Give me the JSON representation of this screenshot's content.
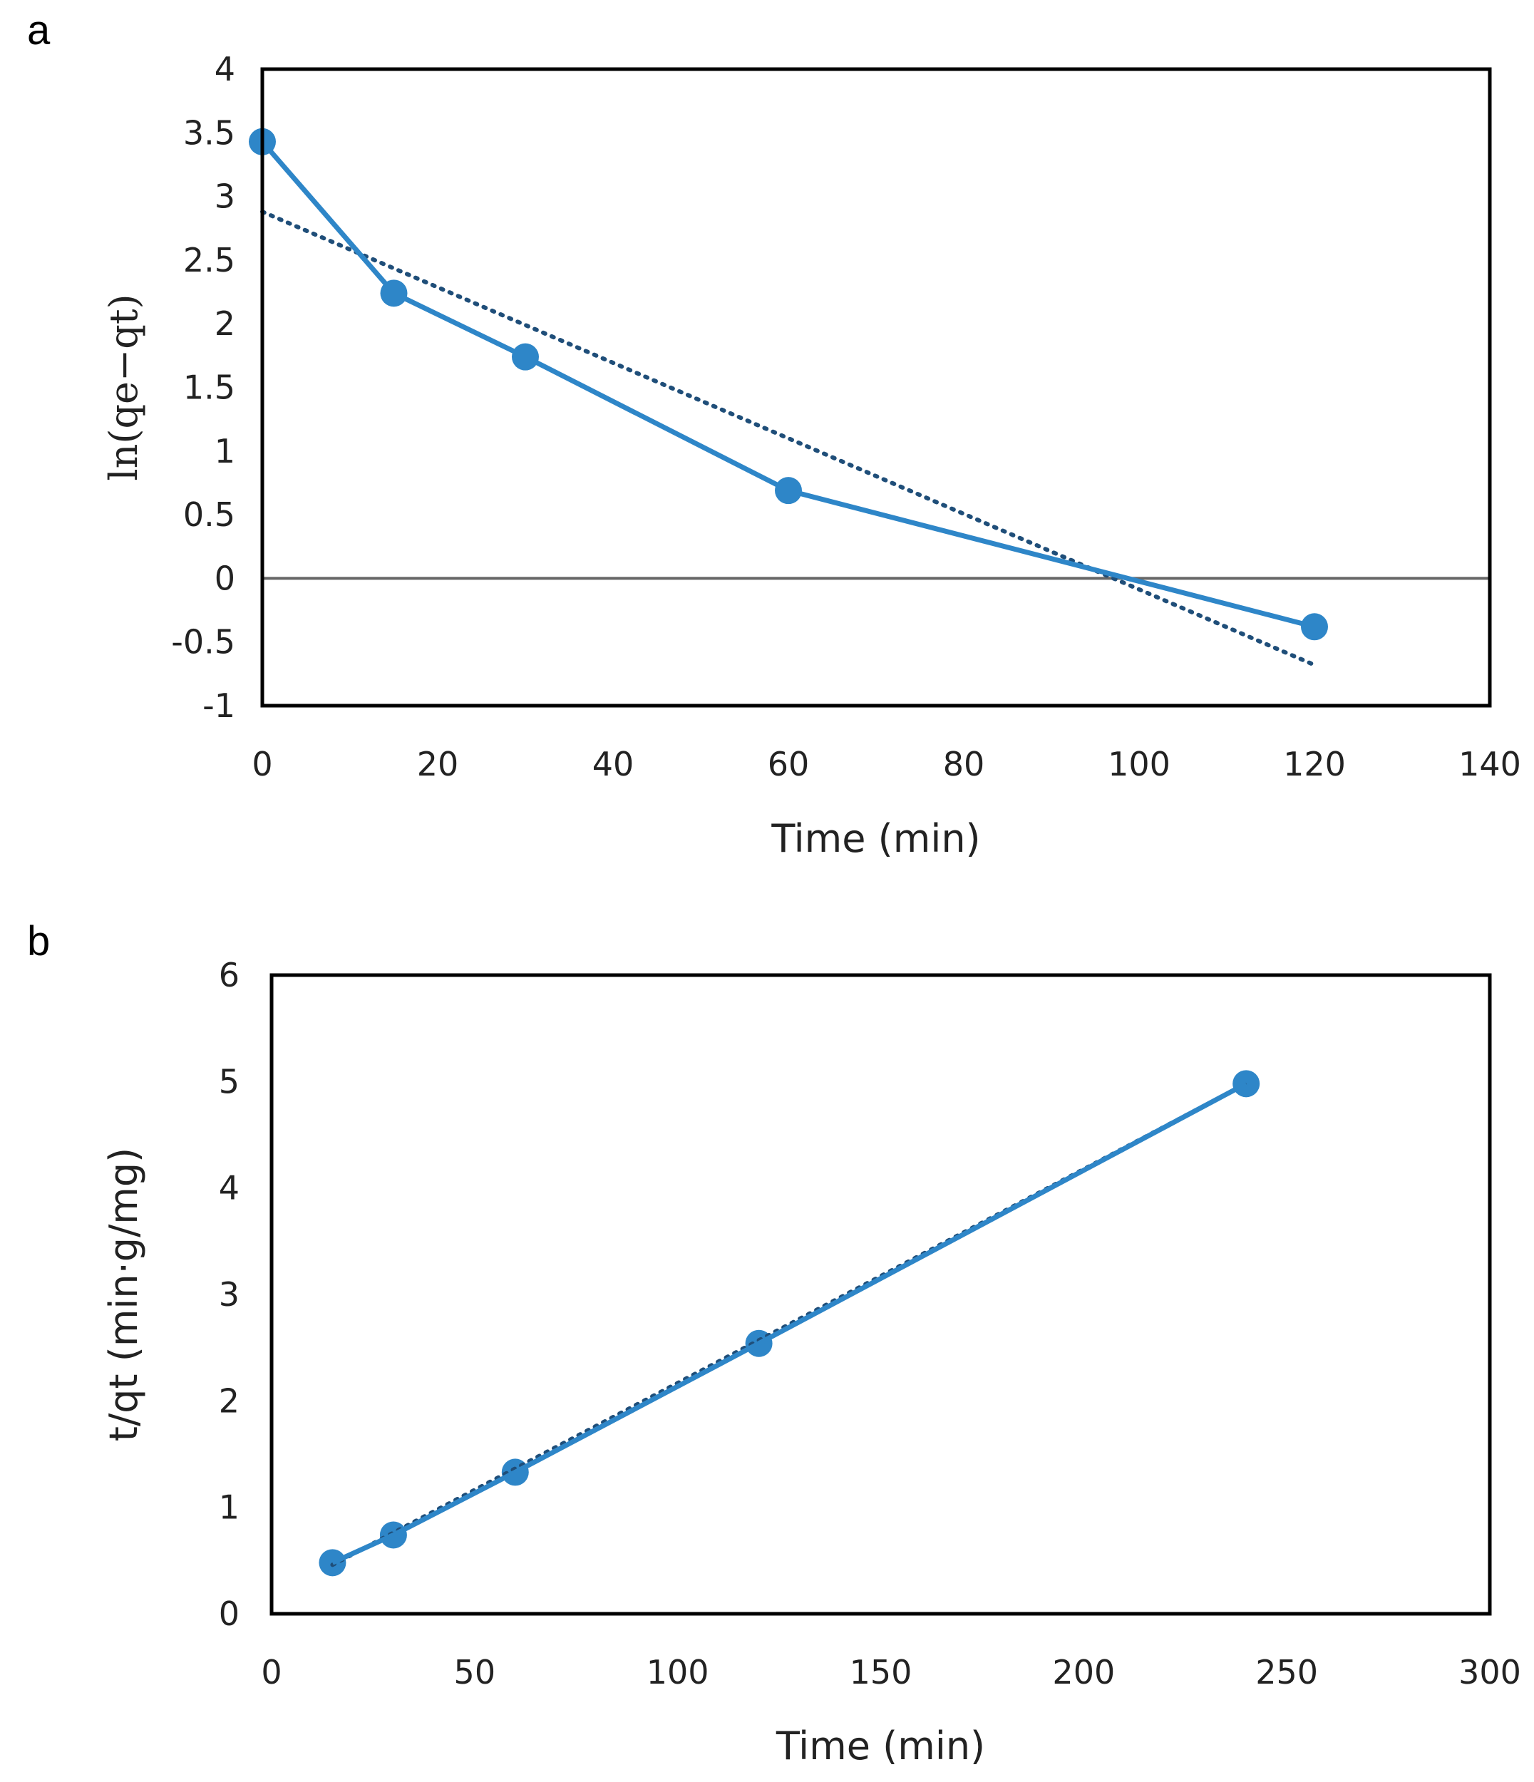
{
  "chart_data": [
    {
      "panel_label": "a",
      "type": "line",
      "xlabel": "Time (min)",
      "ylabel": "ln(qe−qt)",
      "xlim": [
        0,
        140
      ],
      "ylim": [
        -1,
        4
      ],
      "xticks": [
        "0",
        "20",
        "40",
        "60",
        "80",
        "100",
        "120",
        "140"
      ],
      "yticks": [
        "4",
        "3.5",
        "3",
        "2.5",
        "2",
        "1.5",
        "1",
        "0.5",
        "0",
        "-0.5",
        "-1"
      ],
      "zero_line": true,
      "series": [
        {
          "x": [
            0,
            15,
            30,
            60,
            120
          ],
          "y": [
            3.43,
            2.24,
            1.74,
            0.69,
            -0.38
          ],
          "style": "solid-markers",
          "color": "#2e86c8"
        }
      ],
      "trendline": {
        "x": [
          0,
          120
        ],
        "y": [
          2.88,
          -0.68
        ],
        "style": "dotted",
        "color": "#1f4e79"
      }
    },
    {
      "panel_label": "b",
      "type": "line",
      "xlabel": "Time (min)",
      "ylabel": "t/qt (min·g/mg)",
      "xlim": [
        0,
        300
      ],
      "ylim": [
        0,
        6
      ],
      "xticks": [
        "0",
        "50",
        "100",
        "150",
        "200",
        "250",
        "300"
      ],
      "yticks": [
        "6",
        "5",
        "4",
        "3",
        "2",
        "1",
        "0"
      ],
      "zero_line": false,
      "series": [
        {
          "x": [
            15,
            30,
            60,
            120,
            240
          ],
          "y": [
            0.48,
            0.74,
            1.33,
            2.54,
            4.98
          ],
          "style": "solid-markers",
          "color": "#2e86c8"
        }
      ],
      "trendline": {
        "x": [
          15,
          240
        ],
        "y": [
          0.46,
          4.98
        ],
        "style": "dotted",
        "color": "#1f4e79"
      }
    }
  ]
}
